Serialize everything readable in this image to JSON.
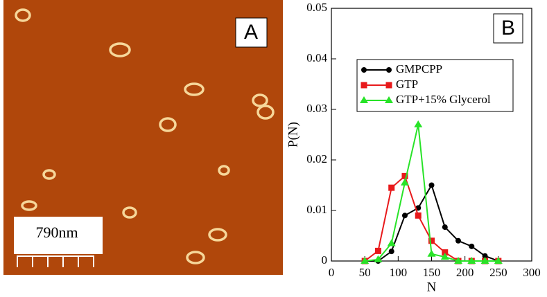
{
  "image_panel": {
    "label": "A",
    "scale_bar": "790nm"
  },
  "chart_data": {
    "type": "line",
    "panel_label": "B",
    "x_label": "N",
    "y_label": "P(N)",
    "x": [
      50,
      70,
      90,
      110,
      130,
      150,
      170,
      190,
      210,
      230,
      250
    ],
    "series": [
      {
        "name": "GMPCPP",
        "color": "#000000",
        "marker": "circle",
        "values": [
          0,
          0,
          0.0019,
          0.009,
          0.0105,
          0.015,
          0.0067,
          0.004,
          0.0029,
          0.001,
          0
        ]
      },
      {
        "name": "GTP",
        "color": "#e8191b",
        "marker": "square",
        "values": [
          0,
          0.002,
          0.0145,
          0.0168,
          0.009,
          0.004,
          0.0017,
          0,
          0,
          0,
          0
        ]
      },
      {
        "name": "GTP+15% Glycerol",
        "color": "#28e328",
        "marker": "triangle",
        "values": [
          0,
          0.0003,
          0.0035,
          0.0155,
          0.027,
          0.0014,
          0.0008,
          0,
          0,
          0,
          0
        ]
      }
    ],
    "xlim": [
      0,
      300
    ],
    "xticks": [
      0,
      50,
      100,
      150,
      200,
      250,
      300
    ],
    "ylim": [
      0,
      0.05
    ],
    "yticks": [
      0,
      0.01,
      0.02,
      0.03,
      0.04,
      0.05
    ]
  }
}
